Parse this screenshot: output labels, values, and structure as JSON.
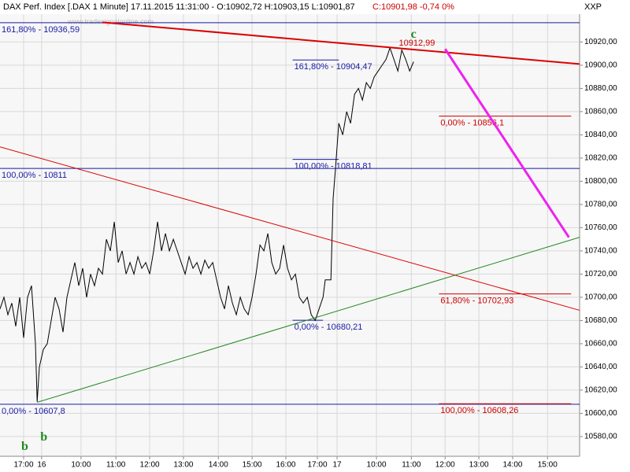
{
  "chart_data": {
    "type": "line",
    "title": "DAX Perf. Index [.DAX  1 Minute] 17.11.2015 11:31:00 - O:10902,72 H:10903,15 L:10901,87",
    "title_close": "C:10901,98 -0,74 0%",
    "corner_label": "XXP",
    "watermark": "www.tradesignalonline.com",
    "xlim": [
      0,
      1030
    ],
    "ylim": [
      10563,
      10944
    ],
    "grid": true,
    "xticks": [
      {
        "value": 42,
        "label": "17:00"
      },
      {
        "value": 74,
        "label": "16"
      },
      {
        "value": 144,
        "label": "10:00"
      },
      {
        "value": 206,
        "label": "11:00"
      },
      {
        "value": 266,
        "label": "12:00"
      },
      {
        "value": 326,
        "label": "13:00"
      },
      {
        "value": 388,
        "label": "14:00"
      },
      {
        "value": 448,
        "label": "15:00"
      },
      {
        "value": 508,
        "label": "16:00"
      },
      {
        "value": 564,
        "label": "17:00"
      },
      {
        "value": 599,
        "label": "17"
      },
      {
        "value": 669,
        "label": "10:00"
      },
      {
        "value": 731,
        "label": "11:00"
      },
      {
        "value": 791,
        "label": "12:00"
      },
      {
        "value": 851,
        "label": "13:00"
      },
      {
        "value": 911,
        "label": "14:00"
      },
      {
        "value": 973,
        "label": "15:00"
      }
    ],
    "yticks": [
      {
        "value": 10580,
        "label": "10580,00"
      },
      {
        "value": 10600,
        "label": "10600,00"
      },
      {
        "value": 10620,
        "label": "10620,00"
      },
      {
        "value": 10640,
        "label": "10640,00"
      },
      {
        "value": 10660,
        "label": "10660,00"
      },
      {
        "value": 10680,
        "label": "10680,00"
      },
      {
        "value": 10700,
        "label": "10700,00"
      },
      {
        "value": 10720,
        "label": "10720,00"
      },
      {
        "value": 10740,
        "label": "10740,00"
      },
      {
        "value": 10760,
        "label": "10760,00"
      },
      {
        "value": 10780,
        "label": "10780,00"
      },
      {
        "value": 10800,
        "label": "10800,00"
      },
      {
        "value": 10820,
        "label": "10820,00"
      },
      {
        "value": 10840,
        "label": "10840,00"
      },
      {
        "value": 10860,
        "label": "10860,00"
      },
      {
        "value": 10880,
        "label": "10880,00"
      },
      {
        "value": 10900,
        "label": "10900,00"
      },
      {
        "value": 10920,
        "label": "10920,00"
      }
    ],
    "series": [
      {
        "color": "#000000",
        "x": [
          0,
          7,
          14,
          21,
          28,
          35,
          42,
          49,
          56,
          63,
          66,
          70,
          77,
          84,
          91,
          98,
          105,
          112,
          119,
          126,
          133,
          140,
          147,
          154,
          161,
          168,
          175,
          182,
          189,
          196,
          203,
          210,
          217,
          224,
          231,
          238,
          245,
          252,
          259,
          266,
          273,
          280,
          287,
          294,
          301,
          308,
          315,
          322,
          329,
          336,
          343,
          350,
          357,
          364,
          371,
          378,
          385,
          392,
          399,
          406,
          413,
          420,
          427,
          434,
          441,
          448,
          455,
          462,
          469,
          476,
          483,
          490,
          497,
          504,
          511,
          518,
          525,
          532,
          539,
          546,
          553,
          560,
          567,
          574,
          578,
          588,
          592,
          596,
          602,
          609,
          616,
          623,
          630,
          637,
          644,
          651,
          658,
          665,
          672,
          679,
          686,
          693,
          700,
          707,
          714,
          721,
          728,
          735
        ],
        "values": [
          10690,
          10700,
          10685,
          10695,
          10675,
          10700,
          10665,
          10700,
          10710,
          10660,
          10610,
          10640,
          10655,
          10660,
          10680,
          10700,
          10690,
          10670,
          10700,
          10715,
          10730,
          10710,
          10725,
          10700,
          10720,
          10710,
          10725,
          10720,
          10750,
          10740,
          10765,
          10730,
          10740,
          10720,
          10730,
          10720,
          10735,
          10725,
          10730,
          10720,
          10740,
          10765,
          10740,
          10755,
          10740,
          10750,
          10740,
          10730,
          10720,
          10735,
          10725,
          10730,
          10720,
          10732,
          10725,
          10730,
          10715,
          10700,
          10690,
          10710,
          10695,
          10685,
          10700,
          10690,
          10685,
          10700,
          10720,
          10745,
          10740,
          10755,
          10730,
          10720,
          10725,
          10745,
          10725,
          10715,
          10720,
          10700,
          10695,
          10700,
          10685,
          10680,
          10690,
          10700,
          10715,
          10715,
          10785,
          10810,
          10850,
          10840,
          10860,
          10850,
          10875,
          10880,
          10870,
          10885,
          10880,
          10890,
          10895,
          10900,
          10905,
          10915,
          10905,
          10895,
          10913,
          10905,
          10895,
          10903
        ]
      }
    ],
    "levels": [
      {
        "label": "161,80% - 10936,59",
        "value": 10936.59,
        "x": [
          0,
          1030
        ],
        "color": "#1a1aa6"
      },
      {
        "label": "100,00% - 10811",
        "value": 10811,
        "x": [
          0,
          1030
        ],
        "color": "#1a1aa6"
      },
      {
        "label": "0,00% - 10607,8",
        "value": 10607.8,
        "x": [
          0,
          1030
        ],
        "color": "#1a1aa6"
      },
      {
        "label": "161,80% - 10904,47",
        "value": 10904.47,
        "x": [
          520,
          602
        ],
        "color": "#1a1aa6"
      },
      {
        "label": "100,00% - 10818,81",
        "value": 10818.81,
        "x": [
          520,
          602
        ],
        "color": "#1a1aa6"
      },
      {
        "label": "0,00% - 10680,21",
        "value": 10680.21,
        "x": [
          520,
          574
        ],
        "color": "#1a1aa6"
      },
      {
        "label": "0,00% - 10856,1",
        "value": 10856.1,
        "x": [
          780,
          1015
        ],
        "color": "#cc0000"
      },
      {
        "label": "61,80% - 10702,93",
        "value": 10702.93,
        "x": [
          780,
          1015
        ],
        "color": "#cc0000"
      },
      {
        "label": "100,00% - 10608,26",
        "value": 10608.26,
        "x": [
          780,
          1015
        ],
        "color": "#cc0000"
      }
    ],
    "trendlines": [
      {
        "color": "#dd0000",
        "width": 2,
        "x": [
          182,
          1030
        ],
        "y": [
          10937,
          10901
        ]
      },
      {
        "color": "#dd0000",
        "width": 1,
        "x": [
          0,
          1030
        ],
        "y": [
          10829.6,
          10688.8
        ]
      },
      {
        "color": "#228822",
        "width": 1,
        "x": [
          66,
          1030
        ],
        "y": [
          10609.5,
          10751.7
        ]
      },
      {
        "color": "#ee22ee",
        "width": 3,
        "x": [
          791,
          1011
        ],
        "y": [
          10914,
          10751.7
        ]
      }
    ],
    "annotations": [
      {
        "text": "10912,99",
        "x": 741,
        "y": 10919,
        "color": "#cc0000",
        "size": 11
      },
      {
        "text": "c",
        "x": 735,
        "y": 10926,
        "color": "#228822",
        "size": 16
      },
      {
        "text": "b",
        "x": 44,
        "y": 10571,
        "color": "#228822",
        "size": 16
      },
      {
        "text": "b",
        "x": 78,
        "y": 10579,
        "color": "#228822",
        "size": 16
      }
    ]
  }
}
